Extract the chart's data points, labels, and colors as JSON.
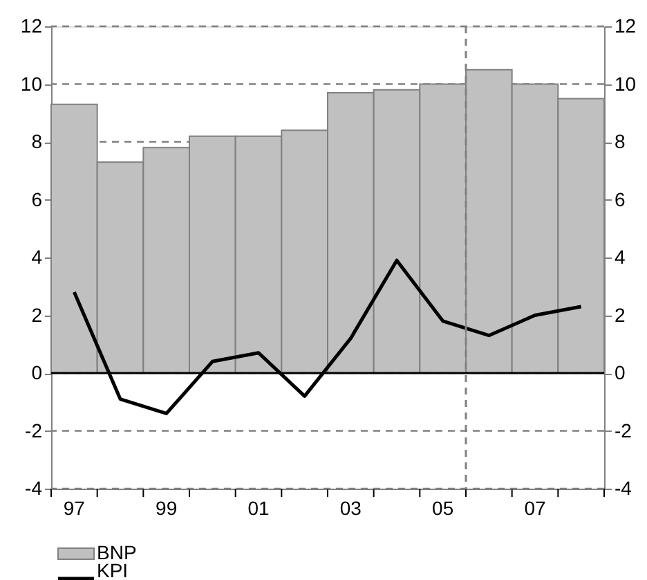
{
  "chart_data": {
    "type": "bar",
    "x": [
      1997,
      1998,
      1999,
      2000,
      2001,
      2002,
      2003,
      2004,
      2005,
      2006,
      2007,
      2008
    ],
    "series": [
      {
        "name": "BNP",
        "type": "bar",
        "color": "#c0c0c0",
        "values": [
          9.3,
          7.3,
          7.8,
          8.2,
          8.2,
          8.4,
          9.7,
          9.8,
          10.0,
          10.5,
          10.0,
          9.5
        ]
      },
      {
        "name": "KPI",
        "type": "line",
        "color": "#000000",
        "values": [
          2.8,
          -0.9,
          -1.4,
          0.4,
          0.7,
          -0.8,
          1.2,
          3.9,
          1.8,
          1.3,
          2.0,
          2.3
        ]
      }
    ],
    "xlim": [
      1996.5,
      2008.5
    ],
    "xticks": [
      {
        "value": 1996.5,
        "label": null
      },
      {
        "value": 1997,
        "label": "97"
      },
      {
        "value": 1997.5,
        "label": null
      },
      {
        "value": 1998.5,
        "label": null
      },
      {
        "value": 1999,
        "label": "99"
      },
      {
        "value": 1999.5,
        "label": null
      },
      {
        "value": 2000.5,
        "label": null
      },
      {
        "value": 2001,
        "label": "01"
      },
      {
        "value": 2001.5,
        "label": null
      },
      {
        "value": 2002.5,
        "label": null
      },
      {
        "value": 2003,
        "label": "03"
      },
      {
        "value": 2003.5,
        "label": null
      },
      {
        "value": 2004.5,
        "label": null
      },
      {
        "value": 2005,
        "label": "05"
      },
      {
        "value": 2005.5,
        "label": null
      },
      {
        "value": 2006.5,
        "label": null
      },
      {
        "value": 2007,
        "label": "07"
      },
      {
        "value": 2007.5,
        "label": null
      },
      {
        "value": 2008.5,
        "label": null
      }
    ],
    "ylim": [
      -4,
      12
    ],
    "yticks": [
      -4,
      -2,
      0,
      2,
      4,
      6,
      8,
      10,
      12
    ],
    "y2lim": [
      -4,
      12
    ],
    "y2ticks": [
      -4,
      -2,
      0,
      2,
      4,
      6,
      8,
      10,
      12
    ],
    "ref_lines": [
      {
        "axis": "x",
        "value": 2005.5,
        "label": null,
        "color": "#808080",
        "line_style": "dashed"
      },
      {
        "axis": "y",
        "value": 0,
        "label": null,
        "color": "#000000",
        "line_style": "solid"
      }
    ],
    "grid": "y",
    "line_style": "solid",
    "marker": "none",
    "legend": "bottom"
  }
}
